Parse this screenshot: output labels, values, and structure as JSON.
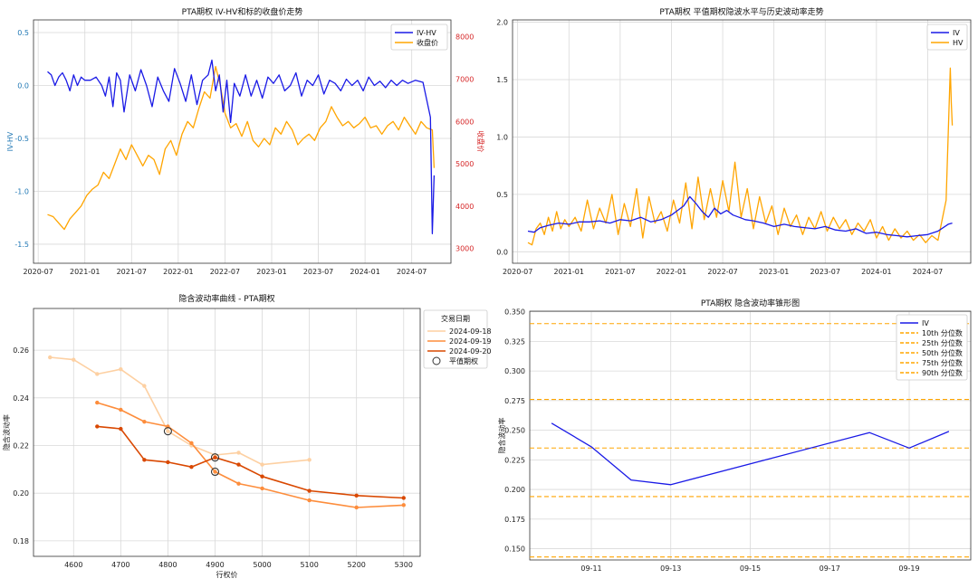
{
  "chart_data": [
    {
      "id": "c1",
      "type": "line",
      "title": "PTA期权 IV-HV和标的收盘价走势",
      "xlabel": "",
      "ylabel": "IV-HV",
      "ylabel_right": "收盘价",
      "ylim": [
        -1.68,
        0.62
      ],
      "ylim_right": [
        2650,
        8400
      ],
      "yticks": [
        0.5,
        0.0,
        -0.5,
        -1.0,
        -1.5
      ],
      "yticks_labels": [
        "0.5",
        "0.0",
        "-0.5",
        "-1.0",
        "-1.5"
      ],
      "yticks_right": [
        3000,
        4000,
        5000,
        6000,
        7000,
        8000
      ],
      "yticks_right_labels": [
        "3000",
        "4000",
        "5000",
        "6000",
        "7000",
        "8000"
      ],
      "xlim": [
        2020.45,
        2024.92
      ],
      "xticks": [
        2020.5,
        2021.0,
        2021.5,
        2022.0,
        2022.5,
        2023.0,
        2023.5,
        2024.0,
        2024.5
      ],
      "xtick_labels": [
        "2020-07",
        "2021-01",
        "2021-07",
        "2022-01",
        "2022-07",
        "2023-01",
        "2023-07",
        "2024-01",
        "2024-07"
      ],
      "legend": "top-right",
      "series": [
        {
          "name": "IV-HV",
          "color": "#1a1ae6",
          "axis": "left",
          "x": [
            2020.6,
            2020.64,
            2020.68,
            2020.72,
            2020.76,
            2020.8,
            2020.84,
            2020.88,
            2020.92,
            2020.96,
            2021.0,
            2021.06,
            2021.12,
            2021.18,
            2021.22,
            2021.26,
            2021.3,
            2021.34,
            2021.38,
            2021.42,
            2021.48,
            2021.54,
            2021.6,
            2021.66,
            2021.72,
            2021.78,
            2021.84,
            2021.9,
            2021.96,
            2022.02,
            2022.08,
            2022.14,
            2022.2,
            2022.26,
            2022.32,
            2022.36,
            2022.4,
            2022.44,
            2022.48,
            2022.52,
            2022.56,
            2022.6,
            2022.66,
            2022.72,
            2022.78,
            2022.84,
            2022.9,
            2022.96,
            2023.02,
            2023.08,
            2023.14,
            2023.2,
            2023.26,
            2023.32,
            2023.38,
            2023.44,
            2023.5,
            2023.56,
            2023.62,
            2023.68,
            2023.74,
            2023.8,
            2023.86,
            2023.92,
            2023.98,
            2024.04,
            2024.1,
            2024.16,
            2024.22,
            2024.28,
            2024.34,
            2024.4,
            2024.46,
            2024.54,
            2024.62,
            2024.7,
            2024.72,
            2024.74
          ],
          "y": [
            0.13,
            0.1,
            0.0,
            0.08,
            0.12,
            0.05,
            -0.05,
            0.1,
            0.0,
            0.08,
            0.05,
            0.05,
            0.08,
            0.0,
            -0.1,
            0.08,
            -0.2,
            0.12,
            0.05,
            -0.25,
            0.1,
            -0.05,
            0.15,
            0.0,
            -0.2,
            0.08,
            -0.05,
            -0.15,
            0.16,
            0.02,
            -0.15,
            0.1,
            -0.18,
            0.05,
            0.1,
            0.24,
            -0.05,
            0.1,
            -0.25,
            0.05,
            -0.35,
            0.02,
            -0.1,
            0.1,
            -0.1,
            0.05,
            -0.12,
            0.08,
            0.02,
            0.1,
            -0.05,
            0.0,
            0.12,
            -0.1,
            0.05,
            0.0,
            0.1,
            -0.08,
            0.05,
            0.02,
            -0.05,
            0.06,
            0.0,
            0.05,
            -0.05,
            0.08,
            0.0,
            0.04,
            -0.02,
            0.05,
            0.0,
            0.05,
            0.02,
            0.05,
            0.03,
            -0.3,
            -1.4,
            -0.85
          ]
        },
        {
          "name": "收盘价",
          "color": "#ffa500",
          "axis": "right",
          "x": [
            2020.6,
            2020.66,
            2020.72,
            2020.78,
            2020.84,
            2020.9,
            2020.96,
            2021.02,
            2021.08,
            2021.14,
            2021.2,
            2021.26,
            2021.32,
            2021.38,
            2021.44,
            2021.5,
            2021.56,
            2021.62,
            2021.68,
            2021.74,
            2021.8,
            2021.86,
            2021.92,
            2021.98,
            2022.04,
            2022.1,
            2022.16,
            2022.22,
            2022.28,
            2022.34,
            2022.4,
            2022.45,
            2022.5,
            2022.56,
            2022.62,
            2022.68,
            2022.74,
            2022.8,
            2022.86,
            2022.92,
            2022.98,
            2023.04,
            2023.1,
            2023.16,
            2023.22,
            2023.28,
            2023.34,
            2023.4,
            2023.46,
            2023.52,
            2023.58,
            2023.64,
            2023.7,
            2023.76,
            2023.82,
            2023.88,
            2023.94,
            2024.0,
            2024.06,
            2024.12,
            2024.18,
            2024.24,
            2024.3,
            2024.36,
            2024.42,
            2024.48,
            2024.54,
            2024.6,
            2024.66,
            2024.72,
            2024.74
          ],
          "y": [
            3800,
            3750,
            3600,
            3450,
            3700,
            3850,
            4000,
            4250,
            4400,
            4500,
            4800,
            4650,
            5000,
            5350,
            5100,
            5450,
            5200,
            4950,
            5200,
            5100,
            4750,
            5350,
            5550,
            5200,
            5700,
            6000,
            5850,
            6300,
            6700,
            6550,
            7300,
            6850,
            6200,
            5850,
            5950,
            5650,
            6000,
            5550,
            5400,
            5600,
            5450,
            5850,
            5700,
            6000,
            5800,
            5450,
            5600,
            5700,
            5550,
            5850,
            6000,
            6350,
            6100,
            5900,
            6000,
            5850,
            5950,
            6100,
            5850,
            5900,
            5700,
            5900,
            6000,
            5800,
            6100,
            5900,
            5700,
            6000,
            5850,
            5800,
            4900
          ]
        }
      ]
    },
    {
      "id": "c2",
      "type": "line",
      "title": "PTA期权 平值期权隐波水平与历史波动率走势",
      "xlabel": "",
      "ylabel": "",
      "ylim": [
        -0.1,
        2.02
      ],
      "yticks": [
        0.0,
        0.5,
        1.0,
        1.5,
        2.0
      ],
      "yticks_labels": [
        "0.0",
        "0.5",
        "1.0",
        "1.5",
        "2.0"
      ],
      "xlim": [
        2020.45,
        2024.92
      ],
      "xticks": [
        2020.5,
        2021.0,
        2021.5,
        2022.0,
        2022.5,
        2023.0,
        2023.5,
        2024.0,
        2024.5
      ],
      "xtick_labels": [
        "2020-07",
        "2021-01",
        "2021-07",
        "2022-01",
        "2022-07",
        "2023-01",
        "2023-07",
        "2024-01",
        "2024-07"
      ],
      "legend": "top-right",
      "series": [
        {
          "name": "IV",
          "color": "#1a1ae6",
          "x": [
            2020.6,
            2020.66,
            2020.72,
            2020.8,
            2020.9,
            2021.0,
            2021.1,
            2021.2,
            2021.3,
            2021.4,
            2021.5,
            2021.6,
            2021.7,
            2021.8,
            2021.9,
            2022.0,
            2022.06,
            2022.12,
            2022.18,
            2022.24,
            2022.3,
            2022.36,
            2022.42,
            2022.48,
            2022.54,
            2022.6,
            2022.66,
            2022.72,
            2022.8,
            2022.9,
            2023.0,
            2023.1,
            2023.2,
            2023.3,
            2023.4,
            2023.5,
            2023.6,
            2023.7,
            2023.8,
            2023.9,
            2024.0,
            2024.1,
            2024.2,
            2024.3,
            2024.4,
            2024.5,
            2024.6,
            2024.7,
            2024.74
          ],
          "y": [
            0.18,
            0.17,
            0.21,
            0.23,
            0.25,
            0.24,
            0.26,
            0.26,
            0.27,
            0.25,
            0.28,
            0.27,
            0.3,
            0.26,
            0.28,
            0.32,
            0.36,
            0.4,
            0.48,
            0.42,
            0.35,
            0.3,
            0.38,
            0.33,
            0.36,
            0.32,
            0.3,
            0.28,
            0.27,
            0.25,
            0.22,
            0.24,
            0.22,
            0.21,
            0.2,
            0.22,
            0.19,
            0.18,
            0.2,
            0.16,
            0.17,
            0.15,
            0.14,
            0.13,
            0.14,
            0.15,
            0.18,
            0.24,
            0.25
          ]
        },
        {
          "name": "HV",
          "color": "#ffa500",
          "x": [
            2020.6,
            2020.64,
            2020.68,
            2020.72,
            2020.76,
            2020.8,
            2020.84,
            2020.88,
            2020.92,
            2020.96,
            2021.0,
            2021.06,
            2021.12,
            2021.18,
            2021.24,
            2021.3,
            2021.36,
            2021.42,
            2021.48,
            2021.54,
            2021.6,
            2021.66,
            2021.72,
            2021.78,
            2021.84,
            2021.9,
            2021.96,
            2022.02,
            2022.08,
            2022.14,
            2022.2,
            2022.26,
            2022.32,
            2022.38,
            2022.44,
            2022.5,
            2022.56,
            2022.62,
            2022.68,
            2022.74,
            2022.8,
            2022.86,
            2022.92,
            2022.98,
            2023.04,
            2023.1,
            2023.16,
            2023.22,
            2023.28,
            2023.34,
            2023.4,
            2023.46,
            2023.52,
            2023.58,
            2023.64,
            2023.7,
            2023.76,
            2023.82,
            2023.88,
            2023.94,
            2024.0,
            2024.06,
            2024.12,
            2024.18,
            2024.24,
            2024.3,
            2024.36,
            2024.42,
            2024.48,
            2024.54,
            2024.6,
            2024.68,
            2024.72,
            2024.73,
            2024.74
          ],
          "y": [
            0.08,
            0.06,
            0.2,
            0.25,
            0.15,
            0.3,
            0.18,
            0.35,
            0.2,
            0.28,
            0.22,
            0.3,
            0.18,
            0.45,
            0.2,
            0.38,
            0.25,
            0.5,
            0.15,
            0.42,
            0.22,
            0.55,
            0.12,
            0.48,
            0.25,
            0.35,
            0.18,
            0.45,
            0.25,
            0.6,
            0.2,
            0.65,
            0.28,
            0.55,
            0.3,
            0.62,
            0.35,
            0.78,
            0.3,
            0.55,
            0.2,
            0.48,
            0.25,
            0.4,
            0.15,
            0.38,
            0.22,
            0.32,
            0.15,
            0.3,
            0.2,
            0.35,
            0.18,
            0.3,
            0.2,
            0.28,
            0.15,
            0.25,
            0.18,
            0.28,
            0.12,
            0.22,
            0.1,
            0.2,
            0.12,
            0.18,
            0.1,
            0.15,
            0.08,
            0.14,
            0.1,
            0.45,
            1.6,
            1.3,
            1.1
          ]
        }
      ]
    },
    {
      "id": "c3",
      "type": "line",
      "title": "隐含波动率曲线 - PTA期权",
      "xlabel": "行权价",
      "ylabel": "隐含波动率",
      "xlim": [
        4515,
        5335
      ],
      "ylim": [
        0.1735,
        0.2775
      ],
      "xticks": [
        4600,
        4700,
        4800,
        4900,
        5000,
        5100,
        5200,
        5300
      ],
      "xtick_labels": [
        "4600",
        "4700",
        "4800",
        "4900",
        "5000",
        "5100",
        "5200",
        "5300"
      ],
      "yticks": [
        0.18,
        0.2,
        0.22,
        0.24,
        0.26
      ],
      "yticks_labels": [
        "0.18",
        "0.20",
        "0.22",
        "0.24",
        "0.26"
      ],
      "legend": "top-right",
      "legend_title": "交易日期",
      "atm_label": "平值期权",
      "series": [
        {
          "name": "2024-09-18",
          "color": "#fdd0a2",
          "x": [
            4550,
            4600,
            4650,
            4700,
            4750,
            4800,
            4850,
            4900,
            4950,
            5000,
            5100
          ],
          "y": [
            0.257,
            0.256,
            0.25,
            0.252,
            0.245,
            0.226,
            0.22,
            0.216,
            0.217,
            0.212,
            0.214
          ]
        },
        {
          "name": "2024-09-19",
          "color": "#fd8d3c",
          "x": [
            4650,
            4700,
            4750,
            4800,
            4850,
            4900,
            4950,
            5000,
            5100,
            5200,
            5300
          ],
          "y": [
            0.238,
            0.235,
            0.23,
            0.228,
            0.221,
            0.209,
            0.204,
            0.202,
            0.197,
            0.194,
            0.195
          ]
        },
        {
          "name": "2024-09-20",
          "color": "#d94801",
          "x": [
            4650,
            4700,
            4750,
            4800,
            4850,
            4900,
            4950,
            5000,
            5100,
            5200,
            5300
          ],
          "y": [
            0.228,
            0.227,
            0.214,
            0.213,
            0.211,
            0.215,
            0.212,
            0.207,
            0.201,
            0.199,
            0.198
          ]
        }
      ],
      "atm_points": [
        {
          "x": 4800,
          "y": 0.226
        },
        {
          "x": 4900,
          "y": 0.209
        },
        {
          "x": 4900,
          "y": 0.215
        }
      ]
    },
    {
      "id": "c4",
      "type": "line",
      "title": "PTA期权 隐含波动率锥形图",
      "xlabel": "",
      "ylabel": "隐含波动率",
      "xlim": [
        9.45,
        20.55
      ],
      "ylim": [
        0.1405,
        0.3505
      ],
      "xticks": [
        11,
        13,
        15,
        17,
        19
      ],
      "xtick_labels": [
        "09-11",
        "09-13",
        "09-15",
        "09-17",
        "09-19"
      ],
      "yticks": [
        0.15,
        0.175,
        0.2,
        0.225,
        0.25,
        0.275,
        0.3,
        0.325,
        0.35
      ],
      "yticks_labels": [
        "0.150",
        "0.175",
        "0.200",
        "0.225",
        "0.250",
        "0.275",
        "0.300",
        "0.325",
        "0.350"
      ],
      "legend": "top-right",
      "series": [
        {
          "name": "IV",
          "color": "#1a1ae6",
          "x": [
            10,
            11,
            12,
            13,
            18,
            19,
            20
          ],
          "y": [
            0.256,
            0.236,
            0.208,
            0.204,
            0.248,
            0.235,
            0.249
          ]
        }
      ],
      "percentiles": [
        {
          "name": "10th 分位数",
          "value": 0.143
        },
        {
          "name": "25th 分位数",
          "value": 0.194
        },
        {
          "name": "50th 分位数",
          "value": 0.235
        },
        {
          "name": "75th 分位数",
          "value": 0.276
        },
        {
          "name": "90th 分位数",
          "value": 0.34
        }
      ],
      "percentile_color": "#ffa500"
    }
  ]
}
